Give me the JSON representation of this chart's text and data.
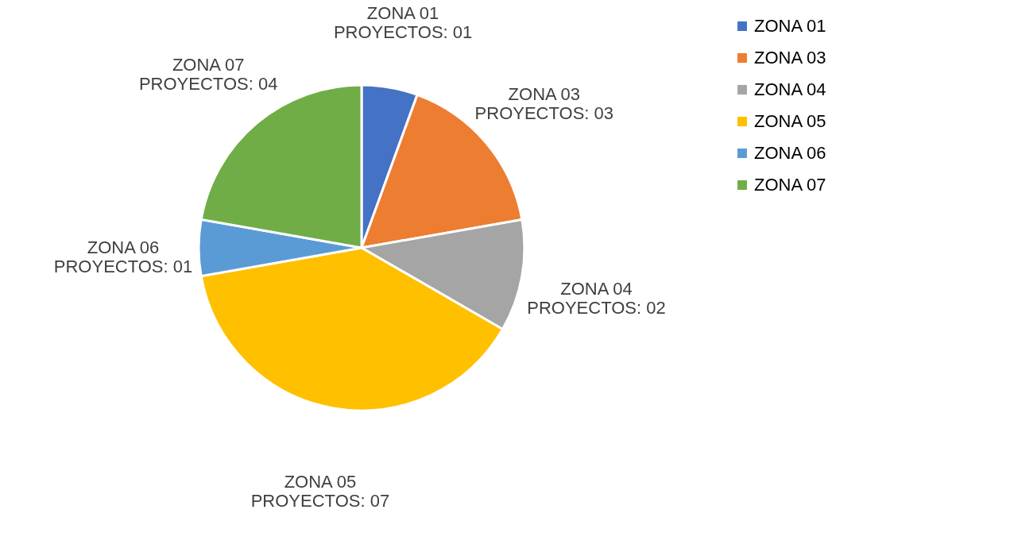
{
  "chart_data": {
    "type": "pie",
    "categories": [
      "ZONA 01",
      "ZONA 03",
      "ZONA 04",
      "ZONA 05",
      "ZONA 06",
      "ZONA 07"
    ],
    "values": [
      1,
      3,
      2,
      7,
      1,
      4
    ],
    "colors": [
      "#4472c4",
      "#ed7d31",
      "#a5a5a5",
      "#ffc000",
      "#5b9bd5",
      "#70ad47"
    ],
    "value_labels": [
      "PROYECTOS: 01",
      "PROYECTOS: 03",
      "PROYECTOS: 02",
      "PROYECTOS: 07",
      "PROYECTOS: 01",
      "PROYECTOS: 04"
    ],
    "legend": "right"
  }
}
